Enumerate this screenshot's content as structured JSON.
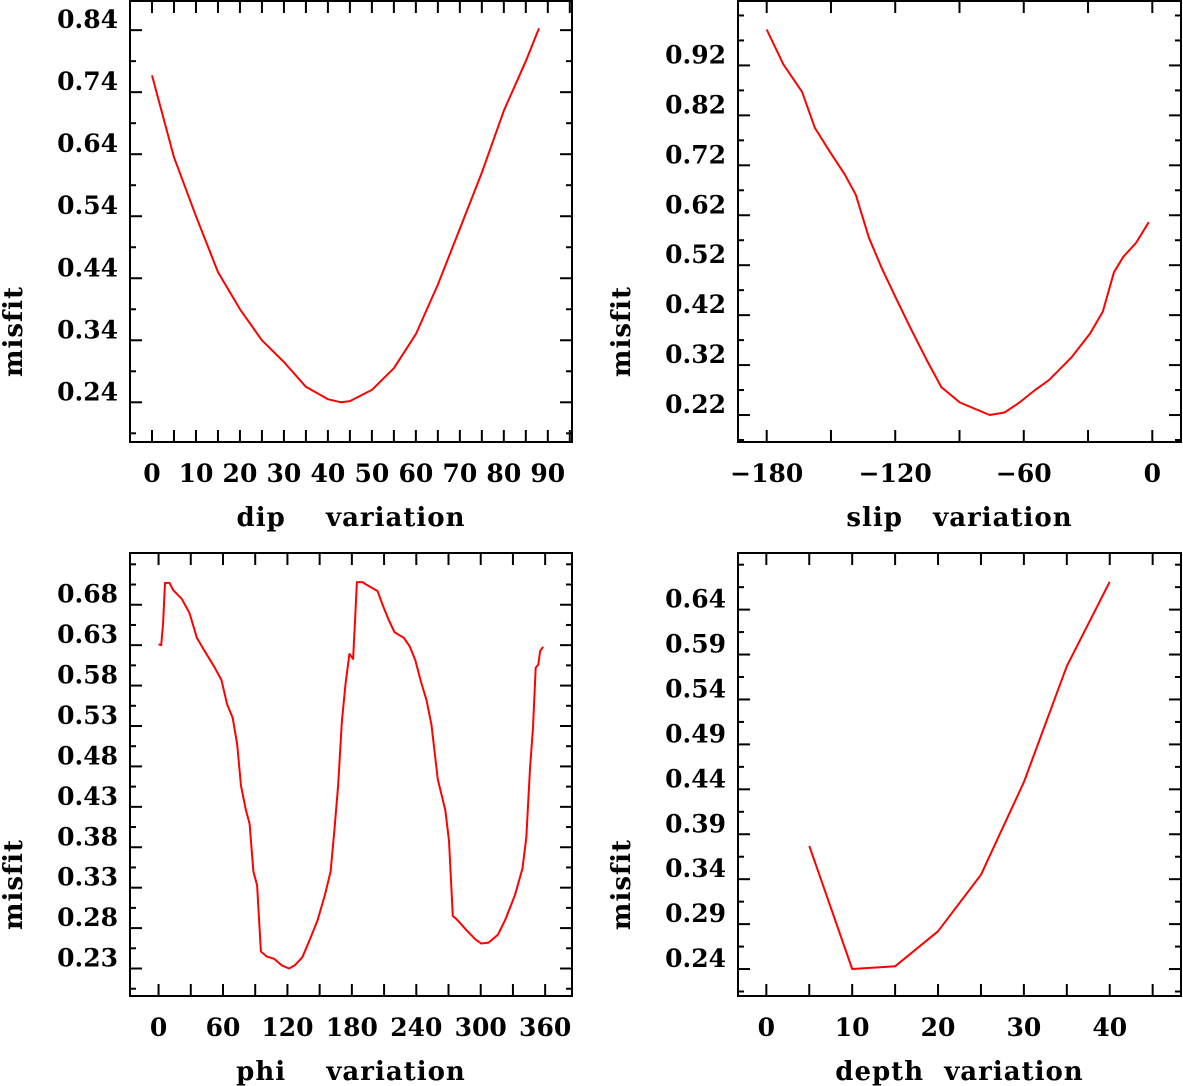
{
  "colors": {
    "line": "#ff0000",
    "axes": "#000000"
  },
  "chart_data": [
    {
      "type": "line",
      "xlabel": "dip    variation",
      "ylabel": "misfit",
      "xlim": [
        -5,
        95.5
      ],
      "ylim": [
        0.176,
        0.887
      ],
      "xticks": [
        0,
        10,
        20,
        30,
        40,
        50,
        60,
        70,
        80,
        90
      ],
      "xtick_labels": [
        "0",
        "10",
        "20",
        "30",
        "40",
        "50",
        "60",
        "70",
        "80",
        "90"
      ],
      "x_minor_step": 5,
      "yticks": [
        0.24,
        0.34,
        0.44,
        0.54,
        0.64,
        0.74,
        0.84
      ],
      "ytick_labels": [
        "0.24",
        "0.34",
        "0.44",
        "0.54",
        "0.64",
        "0.74",
        "0.84"
      ],
      "y_minor_step": 0.05,
      "series": [
        {
          "name": "misfit",
          "x": [
            0,
            5,
            10,
            15,
            20,
            25,
            30,
            35,
            40,
            43,
            45,
            50,
            55,
            60,
            65,
            70,
            75,
            80,
            85,
            88
          ],
          "y": [
            0.767,
            0.635,
            0.54,
            0.45,
            0.39,
            0.34,
            0.305,
            0.265,
            0.245,
            0.24,
            0.242,
            0.26,
            0.295,
            0.35,
            0.43,
            0.52,
            0.61,
            0.71,
            0.79,
            0.843
          ]
        }
      ]
    },
    {
      "type": "line",
      "xlabel": "slip   variation",
      "ylabel": "misfit",
      "xlim": [
        -193.4,
        13.4
      ],
      "ylim": [
        0.166,
        1.049
      ],
      "xticks": [
        -180,
        -120,
        -60,
        0
      ],
      "xtick_labels": [
        "−180",
        "−120",
        "−60",
        "0"
      ],
      "x_minor_step": 30,
      "yticks": [
        0.22,
        0.32,
        0.42,
        0.52,
        0.62,
        0.72,
        0.82,
        0.92
      ],
      "ytick_labels": [
        "0.22",
        "0.32",
        "0.42",
        "0.52",
        "0.62",
        "0.72",
        "0.82",
        "0.92"
      ],
      "y_minor_step": 0.05,
      "series": [
        {
          "name": "misfit",
          "x": [
            -180,
            -172.2,
            -163.5,
            -157.5,
            -150.5,
            -143.6,
            -138.4,
            -132.3,
            -126.2,
            -119.3,
            -112.4,
            -105.4,
            -98.5,
            -89.8,
            -75.9,
            -69,
            -62,
            -55.1,
            -48.2,
            -37.8,
            -29.1,
            -23.1,
            -17.9,
            -13.5,
            -7.5,
            -1.7
          ],
          "y": [
            0.992,
            0.922,
            0.867,
            0.795,
            0.747,
            0.702,
            0.661,
            0.575,
            0.513,
            0.451,
            0.39,
            0.331,
            0.276,
            0.245,
            0.22,
            0.225,
            0.245,
            0.269,
            0.29,
            0.335,
            0.383,
            0.427,
            0.506,
            0.537,
            0.565,
            0.606
          ]
        }
      ]
    },
    {
      "type": "line",
      "xlabel": "phi    variation",
      "ylabel": "misfit",
      "xlim": [
        -26.6,
        385
      ],
      "ylim": [
        0.196,
        0.744
      ],
      "xticks": [
        0,
        60,
        120,
        180,
        240,
        300,
        360
      ],
      "xtick_labels": [
        "0",
        "60",
        "120",
        "180",
        "240",
        "300",
        "360"
      ],
      "x_minor_step": 30,
      "yticks": [
        0.23,
        0.28,
        0.33,
        0.38,
        0.43,
        0.48,
        0.53,
        0.58,
        0.63,
        0.68
      ],
      "ytick_labels": [
        "0.23",
        "0.28",
        "0.33",
        "0.38",
        "0.43",
        "0.48",
        "0.53",
        "0.58",
        "0.63",
        "0.68"
      ],
      "y_minor_step": 0.025,
      "series": [
        {
          "name": "misfit",
          "x": [
            0,
            2.5,
            4.2,
            6,
            10.2,
            13.7,
            21.7,
            28.7,
            35.7,
            42.8,
            51.5,
            58.5,
            63.8,
            69,
            73.2,
            76.8,
            81.3,
            84.8,
            88.3,
            91.8,
            95.3,
            100.6,
            107.6,
            114.6,
            121.6,
            126.9,
            133.9,
            140.9,
            147.9,
            154.9,
            160.2,
            163.7,
            167.2,
            170.7,
            174.2,
            177.7,
            181.2,
            182.9,
            184.7,
            189.9,
            193.4,
            203.9,
            209.2,
            214.4,
            219.7,
            228.5,
            233.7,
            239,
            244.3,
            249.5,
            254.1,
            260,
            267,
            270.5,
            274,
            277.5,
            286.3,
            295.1,
            300.4,
            307.3,
            316.1,
            323.1,
            331.9,
            338.9,
            342.4,
            345.9,
            348.7,
            351.2,
            353.6,
            355.4,
            358.2
          ],
          "y": [
            0.631,
            0.63,
            0.657,
            0.707,
            0.707,
            0.698,
            0.687,
            0.67,
            0.639,
            0.623,
            0.604,
            0.587,
            0.557,
            0.54,
            0.507,
            0.456,
            0.426,
            0.409,
            0.35,
            0.333,
            0.251,
            0.245,
            0.242,
            0.234,
            0.23,
            0.234,
            0.244,
            0.266,
            0.289,
            0.321,
            0.35,
            0.401,
            0.456,
            0.536,
            0.583,
            0.619,
            0.613,
            0.659,
            0.708,
            0.708,
            0.705,
            0.697,
            0.678,
            0.661,
            0.646,
            0.639,
            0.629,
            0.612,
            0.585,
            0.562,
            0.532,
            0.464,
            0.426,
            0.388,
            0.295,
            0.291,
            0.278,
            0.266,
            0.261,
            0.262,
            0.272,
            0.291,
            0.321,
            0.354,
            0.392,
            0.477,
            0.528,
            0.602,
            0.606,
            0.623,
            0.628
          ]
        }
      ]
    },
    {
      "type": "line",
      "xlabel": "depth  variation",
      "ylabel": "misfit",
      "xlim": [
        -3.3,
        48.3
      ],
      "ylim": [
        0.21,
        0.703
      ],
      "xticks": [
        0,
        10,
        20,
        30,
        40
      ],
      "xtick_labels": [
        "0",
        "10",
        "20",
        "30",
        "40"
      ],
      "x_minor_step": 5,
      "yticks": [
        0.24,
        0.29,
        0.34,
        0.39,
        0.44,
        0.49,
        0.54,
        0.59,
        0.64
      ],
      "ytick_labels": [
        "0.24",
        "0.29",
        "0.34",
        "0.39",
        "0.44",
        "0.49",
        "0.54",
        "0.59",
        "0.64"
      ],
      "y_minor_step": 0.025,
      "series": [
        {
          "name": "misfit",
          "x": [
            5,
            10,
            15,
            20,
            25,
            30,
            35,
            40
          ],
          "y": [
            0.377,
            0.24,
            0.243,
            0.282,
            0.345,
            0.448,
            0.577,
            0.671
          ]
        }
      ]
    }
  ]
}
